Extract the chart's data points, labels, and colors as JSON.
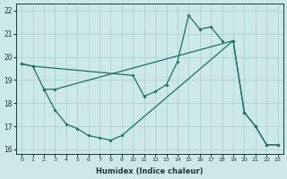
{
  "xlabel": "Humidex (Indice chaleur)",
  "bg_color": "#cce8e8",
  "line_color": "#1a7068",
  "grid_color": "#aacece",
  "xlim": [
    -0.5,
    23.5
  ],
  "ylim": [
    15.8,
    22.3
  ],
  "yticks": [
    16,
    17,
    18,
    19,
    20,
    21,
    22
  ],
  "xticks": [
    0,
    1,
    2,
    3,
    4,
    5,
    6,
    7,
    8,
    9,
    10,
    11,
    12,
    13,
    14,
    15,
    16,
    17,
    18,
    19,
    20,
    21,
    22,
    23
  ],
  "lines": [
    {
      "x": [
        0,
        1,
        10,
        11,
        12,
        13,
        14,
        15,
        16,
        17,
        18
      ],
      "y": [
        19.7,
        19.6,
        19.2,
        18.3,
        18.5,
        18.8,
        19.8,
        21.8,
        21.2,
        21.3,
        20.7
      ]
    },
    {
      "x": [
        0,
        1,
        2,
        3,
        19,
        20,
        21,
        22,
        23
      ],
      "y": [
        19.7,
        19.6,
        18.6,
        18.6,
        20.7,
        17.6,
        17.0,
        16.2,
        16.2
      ]
    },
    {
      "x": [
        2,
        3,
        4,
        5,
        6,
        7,
        8,
        9,
        19,
        20,
        21,
        22,
        23
      ],
      "y": [
        18.6,
        17.7,
        17.1,
        16.9,
        16.6,
        16.5,
        16.4,
        16.6,
        20.7,
        17.6,
        17.0,
        16.2,
        16.2
      ]
    }
  ]
}
